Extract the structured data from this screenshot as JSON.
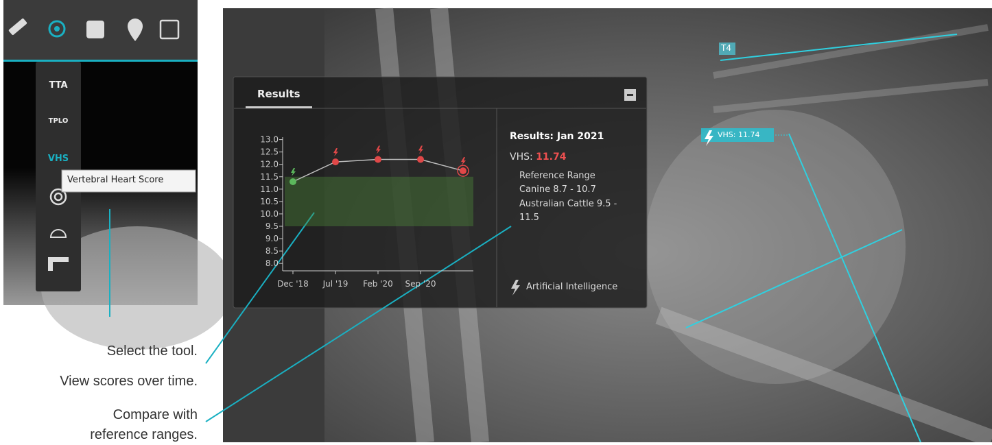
{
  "menu": {
    "items": [
      "TTA",
      "TPLO",
      "VHS"
    ],
    "tooltip": "Vertebral Heart Score"
  },
  "captions": [
    "Select the tool.",
    "View scores over time.",
    "Compare with reference ranges."
  ],
  "results_panel": {
    "tab": "Results",
    "heading": "Results: Jan 2021",
    "score_label": "VHS:",
    "score_value": "11.74",
    "reference_title": "Reference Range",
    "references": [
      "Canine 8.7 - 10.7",
      "Australian Cattle 9.5 - 11.5"
    ],
    "footer": "Artificial Intelligence"
  },
  "image_labels": {
    "vertebra": "T4",
    "vhs": "VHS: 11.74"
  },
  "chart_data": {
    "type": "line",
    "categories": [
      "Dec '18",
      "Jul '19",
      "Feb '20",
      "Sep '20",
      null
    ],
    "values": [
      11.3,
      12.1,
      12.2,
      12.2,
      11.74
    ],
    "point_colors": [
      "#5cb85c",
      "#e04848",
      "#e04848",
      "#e04848",
      "#e04848"
    ],
    "color": "#bdbdbd",
    "reference_band": [
      9.5,
      11.5
    ],
    "ylim": [
      7.7,
      13.1
    ],
    "yticks": [
      {
        "value": 13,
        "label": "13.0"
      },
      {
        "value": 12.5,
        "label": "12.5"
      },
      {
        "value": 12,
        "label": "12.0"
      },
      {
        "value": 11.5,
        "label": "11.5"
      },
      {
        "value": 11,
        "label": "11.0"
      },
      {
        "value": 10.5,
        "label": "10.5"
      },
      {
        "value": 10,
        "label": "10.0"
      },
      {
        "value": 9.5,
        "label": "9.5"
      },
      {
        "value": 9,
        "label": "9.0"
      },
      {
        "value": 8.5,
        "label": "8.5"
      },
      {
        "value": 8,
        "label": "8.0"
      }
    ]
  }
}
